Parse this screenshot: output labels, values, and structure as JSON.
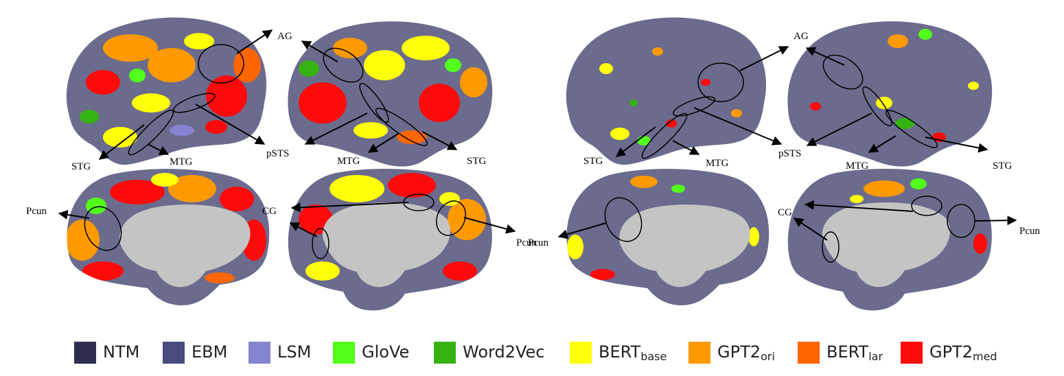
{
  "labels": {
    "ag": "AG",
    "stg": "STG",
    "mtg": "MTG",
    "psts": "pSTS",
    "pcun": "Pcun",
    "cg": "CG"
  },
  "legend": [
    {
      "main": "NTM",
      "sub": "",
      "color": "#2e2e4e"
    },
    {
      "main": "EBM",
      "sub": "",
      "color": "#4a4a80"
    },
    {
      "main": "LSM",
      "sub": "",
      "color": "#8484d0"
    },
    {
      "main": "GloVe",
      "sub": "",
      "color": "#52ff1a"
    },
    {
      "main": "Word2Vec",
      "sub": "",
      "color": "#36b312"
    },
    {
      "main": "BERT",
      "sub": "base",
      "color": "#ffff0a"
    },
    {
      "main": "GPT2",
      "sub": "ori",
      "color": "#ff9900"
    },
    {
      "main": "BERT",
      "sub": "lar",
      "color": "#ff6600"
    },
    {
      "main": "GPT2",
      "sub": "med",
      "color": "#ff0a0a"
    }
  ],
  "colors": {
    "cortex": "#6b6b8e",
    "medial_wall": "#c4c4c4"
  }
}
